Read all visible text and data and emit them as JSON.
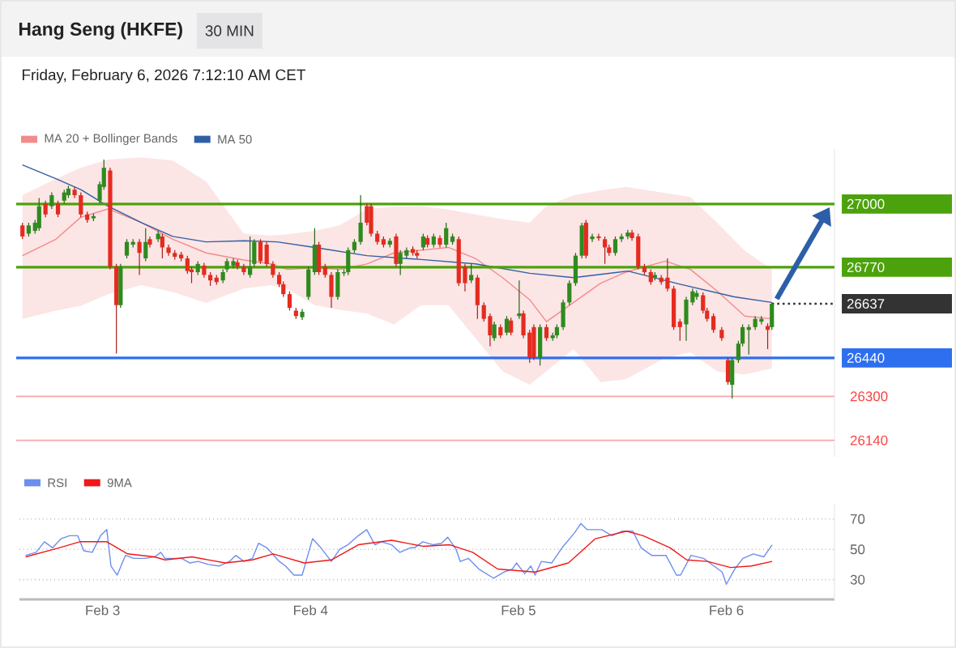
{
  "chart_data": [
    {
      "type": "candlestick",
      "title": "Hang Seng (HKFE)",
      "subtitle": "Friday, February 6, 2026 7:12:10 AM CET",
      "annotations": [
        "30 MIN"
      ],
      "x": [
        "2026-02-02T15:07",
        "2026-02-02T15:50",
        "2026-02-02T16:34",
        "2026-02-02T17:02",
        "2026-02-02T17:46",
        "2026-02-02T18:29",
        "2026-02-02T19:12",
        "2026-02-02T19:55",
        "2026-02-02T20:24",
        "2026-02-02T21:07",
        "2026-02-02T21:50",
        "2026-02-02T22:34",
        "2026-02-02T23:17",
        "2026-02-03T00:00",
        "2026-02-03T00:29",
        "2026-02-03T01:12",
        "2026-02-03T01:55",
        "2026-02-03T02:24",
        "2026-02-03T03:07",
        "2026-02-03T03:50",
        "2026-02-03T04:34",
        "2026-02-03T05:17",
        "2026-02-03T05:46",
        "2026-02-03T06:43",
        "2026-02-03T07:12",
        "2026-02-03T07:55",
        "2026-02-03T08:38",
        "2026-02-03T09:22",
        "2026-02-03T10:05",
        "2026-02-03T10:34",
        "2026-02-03T11:17",
        "2026-02-03T12:00",
        "2026-02-03T12:43",
        "2026-02-03T13:26",
        "2026-02-03T14:10",
        "2026-02-03T14:38",
        "2026-02-03T15:22",
        "2026-02-03T15:50",
        "2026-02-03T16:34",
        "2026-02-03T17:17",
        "2026-02-03T17:46",
        "2026-02-03T18:29",
        "2026-02-03T19:12",
        "2026-02-03T19:55",
        "2026-02-03T20:38",
        "2026-02-03T21:07",
        "2026-02-03T21:50",
        "2026-02-03T22:34",
        "2026-02-03T23:17",
        "2026-02-04T00:00",
        "2026-02-04T00:43",
        "2026-02-04T01:12",
        "2026-02-04T01:55",
        "2026-02-04T02:38",
        "2026-02-04T03:22",
        "2026-02-04T04:05",
        "2026-02-04T04:34",
        "2026-02-04T05:17",
        "2026-02-04T06:00",
        "2026-02-04T06:43",
        "2026-02-04T07:12",
        "2026-02-04T07:55",
        "2026-02-04T08:38",
        "2026-02-04T09:22",
        "2026-02-04T10:05",
        "2026-02-04T10:34",
        "2026-02-04T11:17",
        "2026-02-04T12:00",
        "2026-02-04T12:29",
        "2026-02-04T13:12",
        "2026-02-04T13:41",
        "2026-02-04T14:24",
        "2026-02-04T15:07",
        "2026-02-04T15:50",
        "2026-02-04T16:34",
        "2026-02-04T17:17",
        "2026-02-04T18:00",
        "2026-02-04T18:43",
        "2026-02-04T19:26",
        "2026-02-04T20:10",
        "2026-02-04T20:53",
        "2026-02-04T21:22",
        "2026-02-04T22:05",
        "2026-02-04T22:48",
        "2026-02-04T23:17",
        "2026-02-05T00:14",
        "2026-02-05T00:43",
        "2026-02-05T01:26",
        "2026-02-05T01:55",
        "2026-02-05T02:38",
        "2026-02-05T03:22",
        "2026-02-05T04:05",
        "2026-02-05T04:34",
        "2026-02-05T05:17",
        "2026-02-05T06:00",
        "2026-02-05T06:43",
        "2026-02-05T07:26",
        "2026-02-05T07:55",
        "2026-02-05T08:38",
        "2026-02-05T09:22",
        "2026-02-05T10:05",
        "2026-02-05T10:34",
        "2026-02-05T11:17",
        "2026-02-05T12:00",
        "2026-02-05T12:43",
        "2026-02-05T13:12",
        "2026-02-05T13:55",
        "2026-02-05T14:38",
        "2026-02-05T15:22",
        "2026-02-05T15:50",
        "2026-02-05T16:34",
        "2026-02-05T17:17",
        "2026-02-05T18:00",
        "2026-02-05T18:43",
        "2026-02-05T19:26",
        "2026-02-05T20:10",
        "2026-02-05T20:38",
        "2026-02-05T21:22",
        "2026-02-05T21:50",
        "2026-02-05T22:34",
        "2026-02-05T23:31",
        "2026-02-06T00:14",
        "2026-02-06T00:43",
        "2026-02-06T01:26",
        "2026-02-06T01:55",
        "2026-02-06T02:38",
        "2026-02-06T03:22",
        "2026-02-06T04:05",
        "2026-02-06T04:48",
        "2026-02-06T05:17"
      ],
      "ohlc": [
        [
          26922,
          26932,
          26872,
          26882
        ],
        [
          26892,
          26932,
          26882,
          26922
        ],
        [
          26902,
          26942,
          26892,
          26932
        ],
        [
          26912,
          27022,
          26902,
          26992
        ],
        [
          27002,
          27012,
          26952,
          26962
        ],
        [
          26992,
          27042,
          26982,
          27032
        ],
        [
          27002,
          27012,
          26952,
          26962
        ],
        [
          27012,
          27052,
          27002,
          27042
        ],
        [
          27032,
          27066,
          27022,
          27056
        ],
        [
          27052,
          27062,
          27022,
          27032
        ],
        [
          27032,
          27042,
          26952,
          26962
        ],
        [
          26962,
          26972,
          26932,
          26942
        ],
        [
          26948,
          26966,
          26938,
          26956
        ],
        [
          27012,
          27082,
          27002,
          27072
        ],
        [
          27062,
          27162,
          27052,
          27132
        ],
        [
          27122,
          27132,
          26762,
          26772
        ],
        [
          26772,
          26782,
          26456,
          26632
        ],
        [
          26632,
          26782,
          26622,
          26772
        ],
        [
          26812,
          26872,
          26802,
          26862
        ],
        [
          26852,
          26872,
          26842,
          26862
        ],
        [
          26862,
          26872,
          26742,
          26822
        ],
        [
          26802,
          26912,
          26792,
          26862
        ],
        [
          26872,
          26882,
          26842,
          26852
        ],
        [
          26872,
          26902,
          26862,
          26892
        ],
        [
          26882,
          26892,
          26802,
          26842
        ],
        [
          26842,
          26852,
          26812,
          26822
        ],
        [
          26822,
          26832,
          26798,
          26808
        ],
        [
          26816,
          26826,
          26792,
          26802
        ],
        [
          26802,
          26812,
          26746,
          26756
        ],
        [
          26762,
          26772,
          26712,
          26752
        ],
        [
          26752,
          26792,
          26742,
          26782
        ],
        [
          26776,
          26786,
          26732,
          26742
        ],
        [
          26742,
          26752,
          26702,
          26722
        ],
        [
          26732,
          26742,
          26706,
          26716
        ],
        [
          26722,
          26762,
          26712,
          26752
        ],
        [
          26762,
          26802,
          26752,
          26792
        ],
        [
          26776,
          26802,
          26766,
          26792
        ],
        [
          26788,
          26798,
          26762,
          26772
        ],
        [
          26772,
          26782,
          26742,
          26752
        ],
        [
          26742,
          26882,
          26732,
          26772
        ],
        [
          26782,
          26872,
          26772,
          26862
        ],
        [
          26862,
          26872,
          26782,
          26792
        ],
        [
          26852,
          26862,
          26772,
          26782
        ],
        [
          26782,
          26792,
          26732,
          26742
        ],
        [
          26742,
          26752,
          26698,
          26708
        ],
        [
          26708,
          26718,
          26662,
          26672
        ],
        [
          26672,
          26682,
          26612,
          26622
        ],
        [
          26612,
          26622,
          26582,
          26592
        ],
        [
          26588,
          26618,
          26578,
          26608
        ],
        [
          26662,
          26772,
          26652,
          26762
        ],
        [
          26752,
          26912,
          26742,
          26852
        ],
        [
          26852,
          26862,
          26742,
          26752
        ],
        [
          26772,
          26782,
          26732,
          26742
        ],
        [
          26742,
          26752,
          26622,
          26662
        ],
        [
          26662,
          26762,
          26652,
          26752
        ],
        [
          26748,
          26762,
          26738,
          26752
        ],
        [
          26752,
          26842,
          26742,
          26832
        ],
        [
          26832,
          26872,
          26822,
          26862
        ],
        [
          26862,
          27032,
          26852,
          26932
        ],
        [
          26992,
          27002,
          26922,
          26932
        ],
        [
          26992,
          27002,
          26882,
          26892
        ],
        [
          26892,
          26902,
          26852,
          26862
        ],
        [
          26872,
          26882,
          26842,
          26852
        ],
        [
          26852,
          26876,
          26842,
          26866
        ],
        [
          26882,
          26892,
          26772,
          26782
        ],
        [
          26782,
          26832,
          26742,
          26822
        ],
        [
          26812,
          26842,
          26802,
          26832
        ],
        [
          26836,
          26846,
          26812,
          26822
        ],
        [
          26822,
          26832,
          26802,
          26812
        ],
        [
          26842,
          26892,
          26832,
          26882
        ],
        [
          26876,
          26886,
          26842,
          26852
        ],
        [
          26852,
          26892,
          26842,
          26882
        ],
        [
          26876,
          26886,
          26842,
          26852
        ],
        [
          26852,
          26932,
          26842,
          26912
        ],
        [
          26862,
          26892,
          26852,
          26882
        ],
        [
          26872,
          26882,
          26702,
          26712
        ],
        [
          26772,
          26782,
          26682,
          26712
        ],
        [
          26722,
          26782,
          26712,
          26742
        ],
        [
          26732,
          26742,
          26582,
          26632
        ],
        [
          26632,
          26642,
          26572,
          26582
        ],
        [
          26592,
          26602,
          26482,
          26522
        ],
        [
          26512,
          26572,
          26502,
          26562
        ],
        [
          26552,
          26562,
          26512,
          26522
        ],
        [
          26532,
          26592,
          26522,
          26582
        ],
        [
          26576,
          26586,
          26522,
          26532
        ],
        [
          26592,
          26722,
          26582,
          26602
        ],
        [
          26602,
          26612,
          26512,
          26522
        ],
        [
          26532,
          26542,
          26422,
          26442
        ],
        [
          26552,
          26562,
          26432,
          26442
        ],
        [
          26442,
          26562,
          26412,
          26552
        ],
        [
          26552,
          26562,
          26502,
          26512
        ],
        [
          26512,
          26532,
          26502,
          26522
        ],
        [
          26522,
          26562,
          26512,
          26552
        ],
        [
          26552,
          26652,
          26542,
          26642
        ],
        [
          26642,
          26722,
          26632,
          26712
        ],
        [
          26712,
          26822,
          26702,
          26812
        ],
        [
          26812,
          26932,
          26802,
          26922
        ],
        [
          26932,
          26942,
          26802,
          26812
        ],
        [
          26872,
          26892,
          26862,
          26882
        ],
        [
          26882,
          26892,
          26866,
          26876
        ],
        [
          26872,
          26882,
          26782,
          26842
        ],
        [
          26842,
          26852,
          26812,
          26822
        ],
        [
          26822,
          26882,
          26812,
          26872
        ],
        [
          26872,
          26892,
          26862,
          26882
        ],
        [
          26882,
          26906,
          26872,
          26896
        ],
        [
          26896,
          26906,
          26866,
          26876
        ],
        [
          26882,
          26892,
          26762,
          26772
        ],
        [
          26772,
          26782,
          26742,
          26752
        ],
        [
          26752,
          26762,
          26706,
          26716
        ],
        [
          26732,
          26752,
          26722,
          26742
        ],
        [
          26732,
          26742,
          26706,
          26716
        ],
        [
          26732,
          26802,
          26682,
          26692
        ],
        [
          26692,
          26702,
          26542,
          26552
        ],
        [
          26572,
          26582,
          26502,
          26552
        ],
        [
          26562,
          26662,
          26502,
          26652
        ],
        [
          26642,
          26692,
          26632,
          26682
        ],
        [
          26662,
          26686,
          26652,
          26676
        ],
        [
          26668,
          26678,
          26602,
          26612
        ],
        [
          26612,
          26622,
          26572,
          26582
        ],
        [
          26592,
          26602,
          26532,
          26542
        ],
        [
          26542,
          26552,
          26502,
          26512
        ],
        [
          26432,
          26442,
          26342,
          26352
        ],
        [
          26342,
          26442,
          26292,
          26432
        ],
        [
          26432,
          26502,
          26422,
          26492
        ],
        [
          26492,
          26562,
          26482,
          26552
        ],
        [
          26542,
          26562,
          26452,
          26552
        ],
        [
          26552,
          26592,
          26542,
          26582
        ],
        [
          26572,
          26592,
          26562,
          26582
        ],
        [
          26556,
          26566,
          26472,
          26542
        ],
        [
          26552,
          26642,
          26542,
          26637
        ]
      ],
      "series": [
        {
          "name": "MA 20 + Bollinger Bands",
          "type": "line",
          "color": "#f38b8b",
          "x": [
            "2026-02-02T15:07",
            "2026-02-02T18:58",
            "2026-02-02T21:50",
            "2026-02-03T00:58",
            "2026-02-03T04:48",
            "2026-02-03T08:24",
            "2026-02-03T12:14",
            "2026-02-03T16:34",
            "2026-02-03T19:41",
            "2026-02-03T21:36",
            "2026-02-04T00:43",
            "2026-02-04T03:36",
            "2026-02-04T06:43",
            "2026-02-04T09:50",
            "2026-02-04T12:58",
            "2026-02-04T16:05",
            "2026-02-04T19:12",
            "2026-02-04T22:19",
            "2026-02-05T01:26",
            "2026-02-05T03:22",
            "2026-02-05T06:29",
            "2026-02-05T09:36",
            "2026-02-05T12:29",
            "2026-02-05T17:02",
            "2026-02-05T19:55",
            "2026-02-05T23:02",
            "2026-02-06T02:10",
            "2026-02-06T05:17"
          ],
          "values": [
            26812,
            26872,
            26952,
            26982,
            26932,
            26872,
            26822,
            26796,
            26782,
            26762,
            26768,
            26762,
            26782,
            26822,
            26832,
            26842,
            26802,
            26732,
            26652,
            26572,
            26642,
            26712,
            26752,
            26792,
            26762,
            26682,
            26592,
            26582
          ],
          "upper": [
            27032,
            27092,
            27132,
            27162,
            27170,
            27158,
            27082,
            26892,
            26885,
            26890,
            26902,
            26922,
            26982,
            26990,
            26992,
            26980,
            26962,
            26945,
            26932,
            26992,
            27032,
            27050,
            27062,
            27040,
            27025,
            26930,
            26830,
            26762
          ],
          "lower": [
            26582,
            26612,
            26630,
            26672,
            26705,
            26680,
            26640,
            26692,
            26705,
            26690,
            26632,
            26615,
            26602,
            26562,
            26632,
            26632,
            26512,
            26392,
            26342,
            26392,
            26472,
            26352,
            26362,
            26440,
            26460,
            26390,
            26380,
            26402
          ]
        },
        {
          "type": "line",
          "color": "#333333",
          "line_style": "dotted",
          "x": [
            "2026-02-06T05:17",
            "2026-02-06T12:29"
          ],
          "values": [
            26637,
            26637
          ]
        },
        {
          "name": "MA 50",
          "type": "line",
          "color": "#2f5fa5",
          "x": [
            "2026-02-02T15:07",
            "2026-02-02T18:58",
            "2026-02-02T21:50",
            "2026-02-03T00:58",
            "2026-02-03T04:48",
            "2026-02-03T08:24",
            "2026-02-03T12:14",
            "2026-02-03T16:34",
            "2026-02-03T20:24",
            "2026-02-04T00:43",
            "2026-02-04T06:43",
            "2026-02-04T12:58",
            "2026-02-04T19:12",
            "2026-02-05T01:26",
            "2026-02-05T06:29",
            "2026-02-05T12:43",
            "2026-02-05T18:43",
            "2026-02-06T00:58",
            "2026-02-06T05:17"
          ],
          "values": [
            27142,
            27092,
            27052,
            26992,
            26932,
            26882,
            26862,
            26866,
            26862,
            26842,
            26812,
            26798,
            26782,
            26748,
            26732,
            26756,
            26708,
            26662,
            26642
          ]
        }
      ],
      "xlim": [
        "2026-02-02T14:24",
        "2026-02-06T12:29"
      ],
      "ylim": [
        26080,
        27200
      ],
      "yticks": [
        26140,
        26300,
        26440,
        26637,
        26770,
        27000
      ],
      "tick_labels": "y",
      "legend": "top left",
      "ref_lines": [
        {
          "axis": "y",
          "value": 27000,
          "color": "#4ca20c"
        },
        {
          "axis": "y",
          "value": 26770,
          "color": "#4ca20c"
        },
        {
          "axis": "y",
          "value": 26440,
          "color": "#2e6ff0"
        },
        {
          "axis": "y",
          "value": 26300,
          "color": "#f8a7a7"
        },
        {
          "axis": "y",
          "value": 26140,
          "color": "#f8a7a7"
        }
      ]
    },
    {
      "type": "line",
      "series": [
        {
          "name": "RSI",
          "color": "#6d8ef0",
          "x": [
            "2026-02-02T15:07",
            "2026-02-02T16:19",
            "2026-02-02T17:17",
            "2026-02-02T18:14",
            "2026-02-02T19:12",
            "2026-02-02T20:10",
            "2026-02-02T21:07",
            "2026-02-02T21:50",
            "2026-02-02T22:48",
            "2026-02-02T23:46",
            "2026-02-03T00:29",
            "2026-02-03T00:58",
            "2026-02-03T01:41",
            "2026-02-03T02:38",
            "2026-02-03T03:36",
            "2026-02-03T04:48",
            "2026-02-03T06:00",
            "2026-02-03T06:43",
            "2026-02-03T07:12",
            "2026-02-03T09:07",
            "2026-02-03T10:05",
            "2026-02-03T11:02",
            "2026-02-03T12:14",
            "2026-02-03T13:26",
            "2026-02-03T14:38",
            "2026-02-03T15:22",
            "2026-02-03T16:19",
            "2026-02-03T17:17",
            "2026-02-03T18:00",
            "2026-02-03T18:58",
            "2026-02-03T20:24",
            "2026-02-03T21:07",
            "2026-02-03T22:05",
            "2026-02-03T23:02",
            "2026-02-04T00:14",
            "2026-02-04T01:12",
            "2026-02-04T02:24",
            "2026-02-04T03:22",
            "2026-02-04T04:19",
            "2026-02-04T05:31",
            "2026-02-04T06:29",
            "2026-02-04T07:26",
            "2026-02-04T08:10",
            "2026-02-04T09:22",
            "2026-02-04T10:19",
            "2026-02-04T11:31",
            "2026-02-04T12:00",
            "2026-02-04T12:58",
            "2026-02-04T14:10",
            "2026-02-04T15:07",
            "2026-02-04T15:50",
            "2026-02-04T16:48",
            "2026-02-04T17:17",
            "2026-02-04T18:14",
            "2026-02-04T19:26",
            "2026-02-04T21:07",
            "2026-02-04T22:19",
            "2026-02-04T23:17",
            "2026-02-04T23:46",
            "2026-02-05T00:43",
            "2026-02-05T01:26",
            "2026-02-05T01:55",
            "2026-02-05T02:38",
            "2026-02-05T03:50",
            "2026-02-05T05:02",
            "2026-02-05T06:29",
            "2026-02-05T07:12",
            "2026-02-05T07:55",
            "2026-02-05T09:36",
            "2026-02-05T10:48",
            "2026-02-05T12:00",
            "2026-02-05T13:12",
            "2026-02-05T14:10",
            "2026-02-05T15:22",
            "2026-02-05T17:02",
            "2026-02-05T18:14",
            "2026-02-05T18:43",
            "2026-02-05T19:55",
            "2026-02-05T21:22",
            "2026-02-05T22:34",
            "2026-02-05T23:31",
            "2026-02-06T00:00",
            "2026-02-06T00:58",
            "2026-02-06T01:55",
            "2026-02-06T03:07",
            "2026-02-06T04:19",
            "2026-02-06T05:17"
          ],
          "values": [
            46,
            48,
            55,
            51,
            57,
            59,
            59,
            49,
            48,
            59,
            63,
            39,
            33,
            46,
            44,
            44,
            45,
            48,
            44,
            44,
            41,
            42,
            40,
            39,
            42,
            46,
            42,
            44,
            54,
            51,
            42,
            39,
            33,
            33,
            57,
            51,
            42,
            50,
            53,
            59,
            63,
            53,
            55,
            53,
            48,
            51,
            51,
            55,
            53,
            54,
            58,
            50,
            42,
            44,
            37,
            31,
            35,
            37,
            41,
            34,
            39,
            33,
            42,
            41,
            51,
            61,
            67,
            63,
            63,
            59,
            62,
            62,
            51,
            46,
            46,
            33,
            33,
            46,
            44,
            39,
            35,
            27,
            37,
            44,
            47,
            45,
            53
          ]
        },
        {
          "name": "9MA",
          "color": "#f01818",
          "x": [
            "2026-02-02T15:07",
            "2026-02-02T18:58",
            "2026-02-02T21:22",
            "2026-02-03T00:29",
            "2026-02-03T02:53",
            "2026-02-03T06:00",
            "2026-02-03T07:12",
            "2026-02-03T10:19",
            "2026-02-03T14:10",
            "2026-02-03T17:17",
            "2026-02-03T19:41",
            "2026-02-03T23:17",
            "2026-02-04T02:24",
            "2026-02-04T05:31",
            "2026-02-04T09:22",
            "2026-02-04T12:58",
            "2026-02-04T16:05",
            "2026-02-04T18:43",
            "2026-02-04T21:36",
            "2026-02-05T01:55",
            "2026-02-05T05:46",
            "2026-02-05T08:53",
            "2026-02-05T12:29",
            "2026-02-05T14:24",
            "2026-02-05T17:31",
            "2026-02-05T19:26",
            "2026-02-05T21:50",
            "2026-02-06T00:29",
            "2026-02-06T02:53",
            "2026-02-06T05:17"
          ],
          "values": [
            45,
            51,
            55,
            55,
            47,
            45,
            43,
            45,
            41,
            43,
            47,
            41,
            43,
            53,
            56,
            52,
            53,
            48,
            37,
            35,
            41,
            57,
            62,
            59,
            51,
            43,
            42,
            38,
            39,
            42
          ]
        }
      ],
      "xlim": [
        "2026-02-02T14:24",
        "2026-02-06T12:29"
      ],
      "xticks": [
        {
          "value": "2026-02-03",
          "label": "Feb 3"
        },
        {
          "value": "2026-02-04",
          "label": "Feb 4"
        },
        {
          "value": "2026-02-05",
          "label": "Feb 5"
        },
        {
          "value": "2026-02-06",
          "label": "Feb 6"
        }
      ],
      "ylim": [
        17,
        80
      ],
      "yticks": [
        30,
        50,
        70
      ],
      "grid": "y",
      "legend": "top left"
    }
  ]
}
